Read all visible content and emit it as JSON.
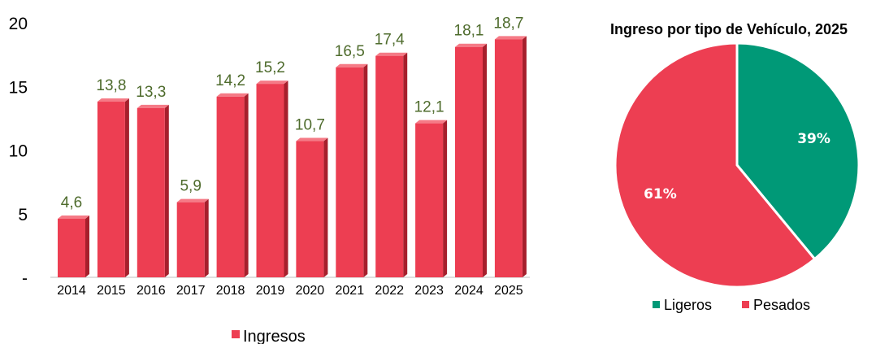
{
  "charts": {
    "bar": {
      "legend_label": "Ingresos"
    },
    "pie": {
      "title": "Ingreso por tipo de Vehículo, 2025",
      "legend": [
        "Ligeros",
        "Pesados"
      ]
    }
  },
  "colors": {
    "bar_front": "#ed3e52",
    "bar_side": "#a61f2c",
    "bar_top": "#f57a86",
    "data_label": "#4e6b2c",
    "pie_ligeros": "#009977",
    "pie_pesados": "#ed3e52"
  },
  "chart_data": [
    {
      "type": "bar",
      "title": "",
      "xlabel": "",
      "ylabel": "",
      "categories": [
        "2014",
        "2015",
        "2016",
        "2017",
        "2018",
        "2019",
        "2020",
        "2021",
        "2022",
        "2023",
        "2024",
        "2025"
      ],
      "series": [
        {
          "name": "Ingresos",
          "values": [
            4.6,
            13.8,
            13.3,
            5.9,
            14.2,
            15.2,
            10.7,
            16.5,
            17.4,
            12.1,
            18.1,
            18.7
          ],
          "labels": [
            "4,6",
            "13,8",
            "13,3",
            "5,9",
            "14,2",
            "15,2",
            "10,7",
            "16,5",
            "17,4",
            "12,1",
            "18,1",
            "18,7"
          ]
        }
      ],
      "ylim": [
        0,
        20
      ],
      "yticks": [
        0,
        5,
        10,
        15,
        20
      ],
      "ytick_labels": [
        "-",
        "5",
        "10",
        "15",
        "20"
      ],
      "grid": false,
      "legend_position": "bottom"
    },
    {
      "type": "pie",
      "title": "Ingreso por tipo de Vehículo, 2025",
      "slices": [
        {
          "name": "Ligeros",
          "value": 39,
          "label": "39%"
        },
        {
          "name": "Pesados",
          "value": 61,
          "label": "61%"
        }
      ],
      "legend_position": "bottom"
    }
  ]
}
